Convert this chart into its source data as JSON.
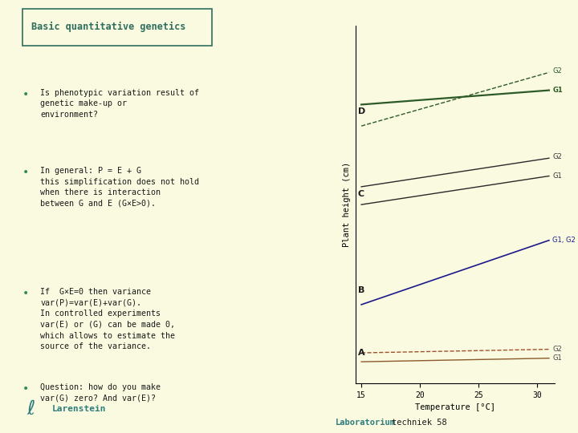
{
  "title": "Basic quantitative genetics",
  "bg_color": "#fafae0",
  "title_color": "#2e6e5e",
  "title_border_color": "#2e6e5e",
  "text_color": "#1a1a1a",
  "bullet_color": "#2e8b57",
  "bullets": [
    "Is phenotypic variation result of\ngenetic make-up or\nenvironment?",
    "In general: P = E + G\nthis simplification does not hold\nwhen there is interaction\nbetween G and E (G×E>0).",
    "If  G×E=0 then variance\nvar(P)=var(E)+var(G).\nIn controlled experiments\nvar(E) or (G) can be made 0,\nwhich allows to estimate the\nsource of the variance.",
    "Question: how do you make\nvar(G) zero? And var(E)?"
  ],
  "xlabel": "Temperature [°C]",
  "ylabel": "Plant height (cm)",
  "xticks": [
    15,
    20,
    25,
    30
  ],
  "lab_text1": "Laboratorium",
  "lab_text2": "techniek 58",
  "lab_color1": "#2e7d7d",
  "lab_color2": "#1a1a1a",
  "larenstein_color": "#2e7d7d",
  "chart_bg": "#fafae0"
}
